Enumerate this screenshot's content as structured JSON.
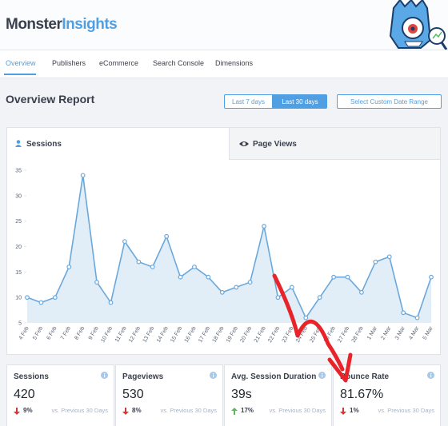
{
  "header": {
    "brand": "Monster",
    "brand_accent": "Insights"
  },
  "nav": [
    "Overview",
    "Publishers",
    "eCommerce",
    "Search Console",
    "Dimensions"
  ],
  "report": {
    "title": "Overview Report",
    "ranges": [
      "Last 7 days",
      "Last 30 days"
    ],
    "custom_range": "Select Custom Date Range"
  },
  "chart_tabs": [
    "Sessions",
    "Page Views"
  ],
  "chart_data": {
    "type": "line",
    "categories": [
      "4 Feb",
      "5 Feb",
      "6 Feb",
      "7 Feb",
      "8 Feb",
      "9 Feb",
      "10 Feb",
      "11 Feb",
      "12 Feb",
      "13 Feb",
      "14 Feb",
      "15 Feb",
      "16 Feb",
      "17 Feb",
      "18 Feb",
      "19 Feb",
      "20 Feb",
      "21 Feb",
      "22 Feb",
      "23 Feb",
      "24 Feb",
      "25 Feb",
      "26 Feb",
      "27 Feb",
      "28 Feb",
      "1 Mar",
      "2 Mar",
      "3 Mar",
      "4 Mar",
      "5 Mar"
    ],
    "values": [
      10,
      9,
      10,
      16,
      34,
      13,
      9,
      21,
      17,
      16,
      22,
      14,
      16,
      14,
      11,
      12,
      13,
      24,
      10,
      12,
      6,
      10,
      14,
      14,
      11,
      17,
      18,
      7,
      6,
      14
    ],
    "color": "#6aa8dc",
    "ylim": [
      5,
      35
    ],
    "yticks": [
      5,
      10,
      15,
      20,
      25,
      30,
      35
    ]
  },
  "stats": [
    {
      "label": "Sessions",
      "value": "420",
      "change": "9%",
      "compare": "vs. Previous 30 Days"
    },
    {
      "label": "Pageviews",
      "value": "530",
      "change": "8%",
      "compare": "vs. Previous 30 Days"
    },
    {
      "label": "Avg. Session Duration",
      "value": "39s",
      "change": "17%",
      "compare": "vs. Previous 30 Days"
    },
    {
      "label": "Bounce Rate",
      "value": "81.67%",
      "change": "1%",
      "compare": "vs. Previous 30 Days"
    }
  ]
}
